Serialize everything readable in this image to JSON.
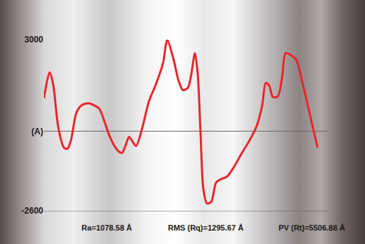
{
  "chart_data": {
    "type": "line",
    "x": [
      0,
      2,
      3.25,
      5,
      7,
      8.25,
      9.5,
      11.5,
      13.25,
      15.75,
      17.75,
      19.5,
      21.5,
      23.25,
      25.75,
      27.5,
      29,
      30,
      31,
      32.5,
      34.5,
      37,
      39.5,
      42,
      43.5,
      45.75,
      47.5,
      49,
      50.75,
      52,
      53.25,
      54.25,
      55.25,
      56.25,
      57.5,
      59,
      60.75,
      62.5,
      64.5,
      67,
      69.5,
      72.5,
      75,
      77,
      78.25,
      79.5,
      80.75,
      82.5,
      84,
      85.25,
      87,
      89,
      90.75,
      92.5,
      94.5,
      96.5
    ],
    "values": [
      1080,
      1930,
      1540,
      160,
      -530,
      -575,
      -300,
      620,
      850,
      920,
      850,
      740,
      280,
      -180,
      -600,
      -710,
      -410,
      -180,
      -300,
      -480,
      45,
      970,
      1540,
      2230,
      2980,
      2340,
      1650,
      1350,
      1420,
      1880,
      2560,
      1880,
      -70,
      -1900,
      -2360,
      -2310,
      -1670,
      -1560,
      -1490,
      -1170,
      -760,
      -300,
      160,
      850,
      1580,
      1490,
      1120,
      1140,
      1760,
      2560,
      2500,
      2340,
      1760,
      1080,
      270,
      -530
    ],
    "color": "#e8262b",
    "line_style": "smooth",
    "xlim": [
      0,
      100
    ],
    "ylim": [
      -2600,
      3000
    ],
    "yticks": [
      -2600,
      {
        "value": 0,
        "label": "(A)"
      },
      3000
    ],
    "grid": false,
    "tick_labels": "y",
    "annotations": [
      "Ra=1078.58 Å",
      "RMS (Rq)=1295.67 Å",
      "PV (Rt)=5506.88 Å"
    ]
  }
}
